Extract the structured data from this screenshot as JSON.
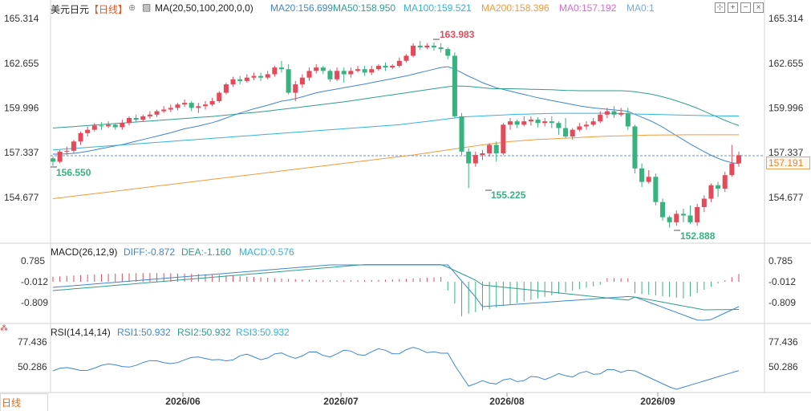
{
  "header": {
    "symbol": "美元日元",
    "period": "【日线】",
    "ma_label": "MA(20,50,100,200,0,0)",
    "ma_values": [
      {
        "text": "MA20:156.699",
        "color": "#3f86d4"
      },
      {
        "text": "MA50:158.950",
        "color": "#2e9e8a"
      },
      {
        "text": "MA100:159.521",
        "color": "#33b2e0"
      },
      {
        "text": "MA200:158.396",
        "color": "#f29a3c"
      },
      {
        "text": "MA0:157.192",
        "color": "#d96ad8"
      },
      {
        "text": "MA0:1",
        "color": "#7ca8e6"
      }
    ],
    "icons": [
      "grid-icon",
      "plus-icon",
      "minus-icon",
      "close-icon"
    ]
  },
  "macd": {
    "label": "MACD(26,12,9)",
    "diff": "DIFF:-0.872",
    "dea": "DEA:-1.160",
    "macd": "MACD:0.576",
    "ticks": [
      "0.785",
      "-0.012",
      "-0.809"
    ]
  },
  "rsi": {
    "label": "RSI(14,14,14)",
    "rsi1": "RSI1:50.932",
    "rsi2": "RSI2:50.932",
    "rsi3": "RSI3:50.932",
    "ticks": [
      "77.436",
      "50.286"
    ]
  },
  "price_box": "157.191",
  "period_tab": "日线",
  "chart_data": {
    "type": "candlestick",
    "y_ticks": [
      "165.314",
      "162.655",
      "159.996",
      "157.337",
      "154.677"
    ],
    "ylim": [
      152.0,
      165.7
    ],
    "x_ticks": [
      "2026/06",
      "2026/07",
      "2026/08",
      "2026/09"
    ],
    "last_price": 157.191,
    "annotations": [
      {
        "text": "163.983",
        "type": "high"
      },
      {
        "text": "156.550",
        "type": "low"
      },
      {
        "text": "155.225",
        "type": "low"
      },
      {
        "text": "152.888",
        "type": "low"
      }
    ],
    "candles": [
      [
        157.0,
        156.8,
        157.1,
        156.55
      ],
      [
        156.8,
        157.4,
        157.5,
        156.7
      ],
      [
        157.4,
        157.45,
        157.7,
        157.2
      ],
      [
        157.45,
        158.0,
        158.1,
        157.3
      ],
      [
        158.0,
        158.5,
        158.6,
        157.8
      ],
      [
        158.5,
        158.7,
        158.9,
        158.3
      ],
      [
        158.7,
        158.95,
        159.1,
        158.6
      ],
      [
        158.95,
        158.9,
        159.15,
        158.7
      ],
      [
        158.9,
        159.0,
        159.2,
        158.8
      ],
      [
        159.0,
        158.85,
        159.1,
        158.7
      ],
      [
        158.85,
        159.1,
        159.3,
        158.7
      ],
      [
        159.1,
        159.4,
        159.5,
        158.95
      ],
      [
        159.4,
        159.3,
        159.6,
        159.15
      ],
      [
        159.3,
        159.5,
        159.6,
        159.2
      ],
      [
        159.5,
        159.6,
        159.8,
        159.35
      ],
      [
        159.6,
        159.8,
        159.9,
        159.45
      ],
      [
        159.8,
        159.9,
        160.1,
        159.7
      ],
      [
        159.9,
        160.0,
        160.2,
        159.75
      ],
      [
        160.0,
        160.2,
        160.3,
        159.85
      ],
      [
        160.2,
        160.3,
        160.5,
        160.05
      ],
      [
        160.3,
        160.0,
        160.4,
        159.8
      ],
      [
        160.0,
        160.1,
        160.3,
        159.7
      ],
      [
        160.1,
        160.2,
        160.4,
        159.9
      ],
      [
        160.2,
        160.4,
        160.6,
        160.1
      ],
      [
        160.4,
        160.9,
        161.0,
        160.3
      ],
      [
        160.9,
        161.4,
        161.5,
        160.8
      ],
      [
        161.4,
        161.7,
        161.85,
        161.25
      ],
      [
        161.7,
        161.6,
        161.9,
        161.4
      ],
      [
        161.6,
        161.8,
        162.0,
        161.5
      ],
      [
        161.8,
        161.9,
        162.1,
        161.65
      ],
      [
        161.9,
        161.8,
        162.1,
        161.6
      ],
      [
        161.8,
        162.0,
        162.2,
        161.7
      ],
      [
        162.0,
        162.4,
        162.5,
        161.85
      ],
      [
        162.4,
        162.3,
        162.8,
        162.1
      ],
      [
        162.3,
        160.9,
        162.6,
        160.8
      ],
      [
        160.9,
        161.4,
        161.6,
        160.4
      ],
      [
        161.4,
        161.8,
        162.0,
        161.2
      ],
      [
        161.8,
        162.2,
        162.4,
        161.6
      ],
      [
        162.2,
        162.4,
        162.6,
        162.05
      ],
      [
        162.4,
        162.2,
        162.5,
        162.0
      ],
      [
        162.2,
        161.7,
        162.3,
        161.55
      ],
      [
        161.7,
        162.2,
        162.4,
        161.6
      ],
      [
        162.2,
        162.0,
        162.4,
        161.5
      ],
      [
        162.0,
        162.2,
        162.4,
        161.8
      ],
      [
        162.2,
        162.3,
        162.5,
        162.1
      ],
      [
        162.3,
        162.1,
        162.5,
        161.9
      ],
      [
        162.1,
        162.3,
        162.5,
        161.95
      ],
      [
        162.3,
        162.5,
        162.6,
        162.2
      ],
      [
        162.5,
        162.4,
        162.7,
        162.2
      ],
      [
        162.4,
        162.5,
        162.6,
        162.3
      ],
      [
        162.5,
        162.8,
        163.0,
        162.4
      ],
      [
        162.8,
        163.1,
        163.2,
        162.7
      ],
      [
        163.1,
        163.7,
        163.85,
        163.0
      ],
      [
        163.7,
        163.6,
        163.98,
        163.45
      ],
      [
        163.6,
        163.7,
        163.85,
        163.5
      ],
      [
        163.7,
        163.6,
        163.9,
        163.4
      ],
      [
        163.6,
        163.5,
        163.85,
        163.3
      ],
      [
        163.5,
        163.1,
        163.6,
        162.9
      ],
      [
        163.1,
        159.5,
        163.3,
        159.4
      ],
      [
        159.5,
        157.4,
        159.7,
        157.2
      ],
      [
        157.4,
        156.7,
        157.6,
        155.23
      ],
      [
        156.7,
        157.2,
        157.4,
        156.5
      ],
      [
        157.2,
        157.3,
        157.5,
        156.9
      ],
      [
        157.3,
        157.8,
        157.9,
        157.1
      ],
      [
        157.8,
        157.3,
        158.0,
        156.8
      ],
      [
        157.3,
        159.0,
        159.1,
        157.2
      ],
      [
        159.0,
        159.2,
        159.4,
        158.7
      ],
      [
        159.2,
        159.0,
        159.3,
        158.8
      ],
      [
        159.0,
        159.2,
        159.5,
        158.9
      ],
      [
        159.2,
        159.3,
        159.5,
        158.95
      ],
      [
        159.3,
        159.1,
        159.45,
        158.85
      ],
      [
        159.1,
        159.2,
        159.4,
        158.9
      ],
      [
        159.2,
        159.1,
        159.5,
        158.8
      ],
      [
        159.1,
        158.8,
        159.2,
        158.4
      ],
      [
        158.8,
        158.3,
        159.4,
        158.2
      ],
      [
        158.3,
        158.7,
        158.8,
        158.1
      ],
      [
        158.7,
        158.9,
        159.1,
        158.6
      ],
      [
        158.9,
        159.0,
        159.2,
        158.7
      ],
      [
        159.0,
        159.2,
        159.4,
        158.9
      ],
      [
        159.2,
        159.6,
        159.8,
        159.1
      ],
      [
        159.6,
        159.8,
        160.0,
        159.4
      ],
      [
        159.8,
        159.6,
        160.1,
        159.4
      ],
      [
        159.6,
        159.7,
        160.0,
        159.5
      ],
      [
        159.7,
        158.9,
        160.0,
        158.7
      ],
      [
        158.9,
        156.4,
        159.0,
        156.1
      ],
      [
        156.4,
        155.6,
        156.7,
        155.3
      ],
      [
        155.6,
        155.9,
        156.3,
        155.5
      ],
      [
        155.9,
        154.4,
        156.1,
        154.2
      ],
      [
        154.4,
        153.5,
        154.6,
        153.3
      ],
      [
        153.5,
        153.2,
        153.6,
        152.89
      ],
      [
        153.2,
        153.7,
        153.9,
        153.0
      ],
      [
        153.7,
        153.6,
        154.0,
        153.2
      ],
      [
        153.6,
        153.2,
        154.2,
        153.1
      ],
      [
        153.2,
        154.1,
        154.3,
        152.99
      ],
      [
        154.1,
        154.6,
        154.8,
        153.8
      ],
      [
        154.6,
        155.4,
        155.5,
        154.4
      ],
      [
        155.4,
        155.2,
        155.6,
        154.7
      ],
      [
        155.2,
        156.0,
        156.2,
        155.0
      ],
      [
        156.0,
        156.7,
        157.8,
        155.9
      ],
      [
        156.7,
        157.19,
        157.4,
        156.5
      ]
    ],
    "series": [
      {
        "name": "MA20",
        "color": "#3f86d4",
        "values": [
          157.25,
          157.25,
          157.27,
          157.3,
          157.35,
          157.42,
          157.5,
          157.58,
          157.66,
          157.74,
          157.82,
          157.92,
          158.02,
          158.12,
          158.22,
          158.32,
          158.42,
          158.52,
          158.64,
          158.76,
          158.84,
          158.92,
          159.02,
          159.12,
          159.25,
          159.4,
          159.55,
          159.7,
          159.82,
          159.95,
          160.05,
          160.16,
          160.28,
          160.4,
          160.46,
          160.55,
          160.66,
          160.78,
          160.9,
          160.98,
          161.05,
          161.12,
          161.2,
          161.27,
          161.34,
          161.42,
          161.5,
          161.58,
          161.66,
          161.74,
          161.82,
          161.9,
          162.0,
          162.1,
          162.2,
          162.3,
          162.4,
          162.45,
          162.3,
          162.1,
          161.88,
          161.7,
          161.5,
          161.35,
          161.2,
          161.1,
          161.0,
          160.9,
          160.8,
          160.7,
          160.6,
          160.52,
          160.44,
          160.36,
          160.28,
          160.2,
          160.12,
          160.06,
          160.0,
          159.96,
          159.92,
          159.88,
          159.84,
          159.8,
          159.62,
          159.44,
          159.28,
          159.08,
          158.86,
          158.6,
          158.35,
          158.1,
          157.85,
          157.62,
          157.4,
          157.18,
          157.0,
          156.85,
          156.74,
          156.69
        ]
      },
      {
        "name": "MA50",
        "color": "#2e9e8a",
        "values": [
          158.8,
          158.83,
          158.86,
          158.89,
          158.92,
          158.95,
          158.98,
          159.01,
          159.04,
          159.07,
          159.1,
          159.13,
          159.16,
          159.19,
          159.22,
          159.25,
          159.28,
          159.31,
          159.34,
          159.37,
          159.4,
          159.43,
          159.46,
          159.49,
          159.53,
          159.57,
          159.61,
          159.65,
          159.69,
          159.73,
          159.77,
          159.81,
          159.86,
          159.91,
          159.96,
          160.01,
          160.06,
          160.11,
          160.16,
          160.21,
          160.26,
          160.31,
          160.36,
          160.42,
          160.48,
          160.54,
          160.6,
          160.66,
          160.72,
          160.78,
          160.84,
          160.9,
          160.96,
          161.02,
          161.08,
          161.14,
          161.2,
          161.26,
          161.3,
          161.3,
          161.28,
          161.24,
          161.2,
          161.16,
          161.14,
          161.14,
          161.14,
          161.13,
          161.12,
          161.11,
          161.1,
          161.09,
          161.08,
          161.06,
          161.04,
          161.03,
          161.02,
          161.02,
          161.02,
          161.02,
          161.02,
          161.02,
          161.02,
          161.0,
          160.96,
          160.9,
          160.84,
          160.76,
          160.66,
          160.55,
          160.42,
          160.28,
          160.14,
          159.98,
          159.8,
          159.62,
          159.44,
          159.26,
          159.1,
          158.95
        ]
      },
      {
        "name": "MA100",
        "color": "#33b2e0",
        "values": [
          157.5,
          157.53,
          157.56,
          157.59,
          157.62,
          157.65,
          157.68,
          157.71,
          157.74,
          157.77,
          157.8,
          157.83,
          157.86,
          157.89,
          157.92,
          157.95,
          157.98,
          158.01,
          158.04,
          158.07,
          158.1,
          158.13,
          158.16,
          158.19,
          158.22,
          158.25,
          158.28,
          158.31,
          158.34,
          158.37,
          158.4,
          158.43,
          158.46,
          158.49,
          158.52,
          158.55,
          158.58,
          158.61,
          158.64,
          158.67,
          158.7,
          158.73,
          158.76,
          158.79,
          158.82,
          158.85,
          158.88,
          158.91,
          158.94,
          158.97,
          159.0,
          159.05,
          159.1,
          159.15,
          159.2,
          159.25,
          159.3,
          159.35,
          159.4,
          159.45,
          159.48,
          159.5,
          159.52,
          159.54,
          159.56,
          159.58,
          159.6,
          159.62,
          159.63,
          159.64,
          159.65,
          159.66,
          159.67,
          159.68,
          159.68,
          159.68,
          159.68,
          159.68,
          159.68,
          159.68,
          159.68,
          159.67,
          159.66,
          159.65,
          159.64,
          159.63,
          159.62,
          159.61,
          159.6,
          159.59,
          159.58,
          159.57,
          159.56,
          159.55,
          159.54,
          159.53,
          159.53,
          159.52,
          159.52,
          159.52
        ]
      },
      {
        "name": "MA200",
        "color": "#f29a3c",
        "values": [
          154.6,
          154.65,
          154.7,
          154.75,
          154.8,
          154.85,
          154.9,
          154.95,
          155.0,
          155.05,
          155.1,
          155.15,
          155.2,
          155.25,
          155.3,
          155.35,
          155.4,
          155.45,
          155.5,
          155.55,
          155.6,
          155.65,
          155.7,
          155.75,
          155.8,
          155.85,
          155.9,
          155.95,
          156.0,
          156.05,
          156.1,
          156.15,
          156.2,
          156.25,
          156.3,
          156.35,
          156.4,
          156.45,
          156.5,
          156.55,
          156.6,
          156.65,
          156.7,
          156.75,
          156.8,
          156.85,
          156.9,
          156.95,
          157.0,
          157.05,
          157.1,
          157.15,
          157.2,
          157.26,
          157.32,
          157.38,
          157.44,
          157.5,
          157.56,
          157.62,
          157.68,
          157.74,
          157.8,
          157.85,
          157.9,
          157.95,
          158.0,
          158.03,
          158.06,
          158.09,
          158.12,
          158.14,
          158.16,
          158.18,
          158.2,
          158.22,
          158.24,
          158.26,
          158.28,
          158.3,
          158.32,
          158.33,
          158.34,
          158.35,
          158.36,
          158.37,
          158.38,
          158.38,
          158.39,
          158.39,
          158.39,
          158.4,
          158.4,
          158.4,
          158.4,
          158.4,
          158.4,
          158.4,
          158.4,
          158.4
        ]
      }
    ]
  }
}
